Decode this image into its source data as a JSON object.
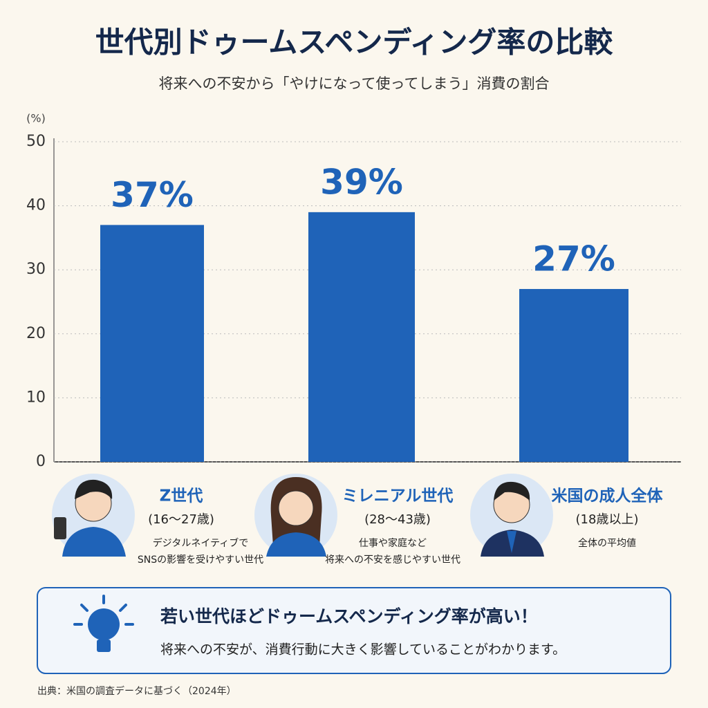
{
  "chart_data": {
    "type": "bar",
    "title": "世代別ドゥームスペンディング率の比較",
    "subtitle": "将来への不安から「やけになって使ってしまう」消費の割合",
    "y_unit": "(%)",
    "categories": [
      "Z世代",
      "ミレニアル世代",
      "米国の成人全体"
    ],
    "category_notes": [
      "(16〜27歳)",
      "(28〜43歳)",
      "(18歳以上)"
    ],
    "category_descriptions": [
      [
        "デジタルネイティブで",
        "SNSの影響を受けやすい世代"
      ],
      [
        "仕事や家庭など",
        "将来への不安を感じやすい世代"
      ],
      [
        "全体の平均値"
      ]
    ],
    "values": [
      37,
      39,
      27
    ],
    "value_labels": [
      "37%",
      "39%",
      "27%"
    ],
    "color": "#1f63b8",
    "ylim": [
      0,
      50
    ],
    "yticks": [
      0,
      10,
      20,
      30,
      40,
      50
    ],
    "grid": true
  },
  "callout": {
    "heading": "若い世代ほどドゥームスペンディング率が高い！",
    "text": "将来への不安が、消費行動に大きく影響していることがわかります。"
  },
  "source": "出典：米国の調査データに基づく（2024年）"
}
